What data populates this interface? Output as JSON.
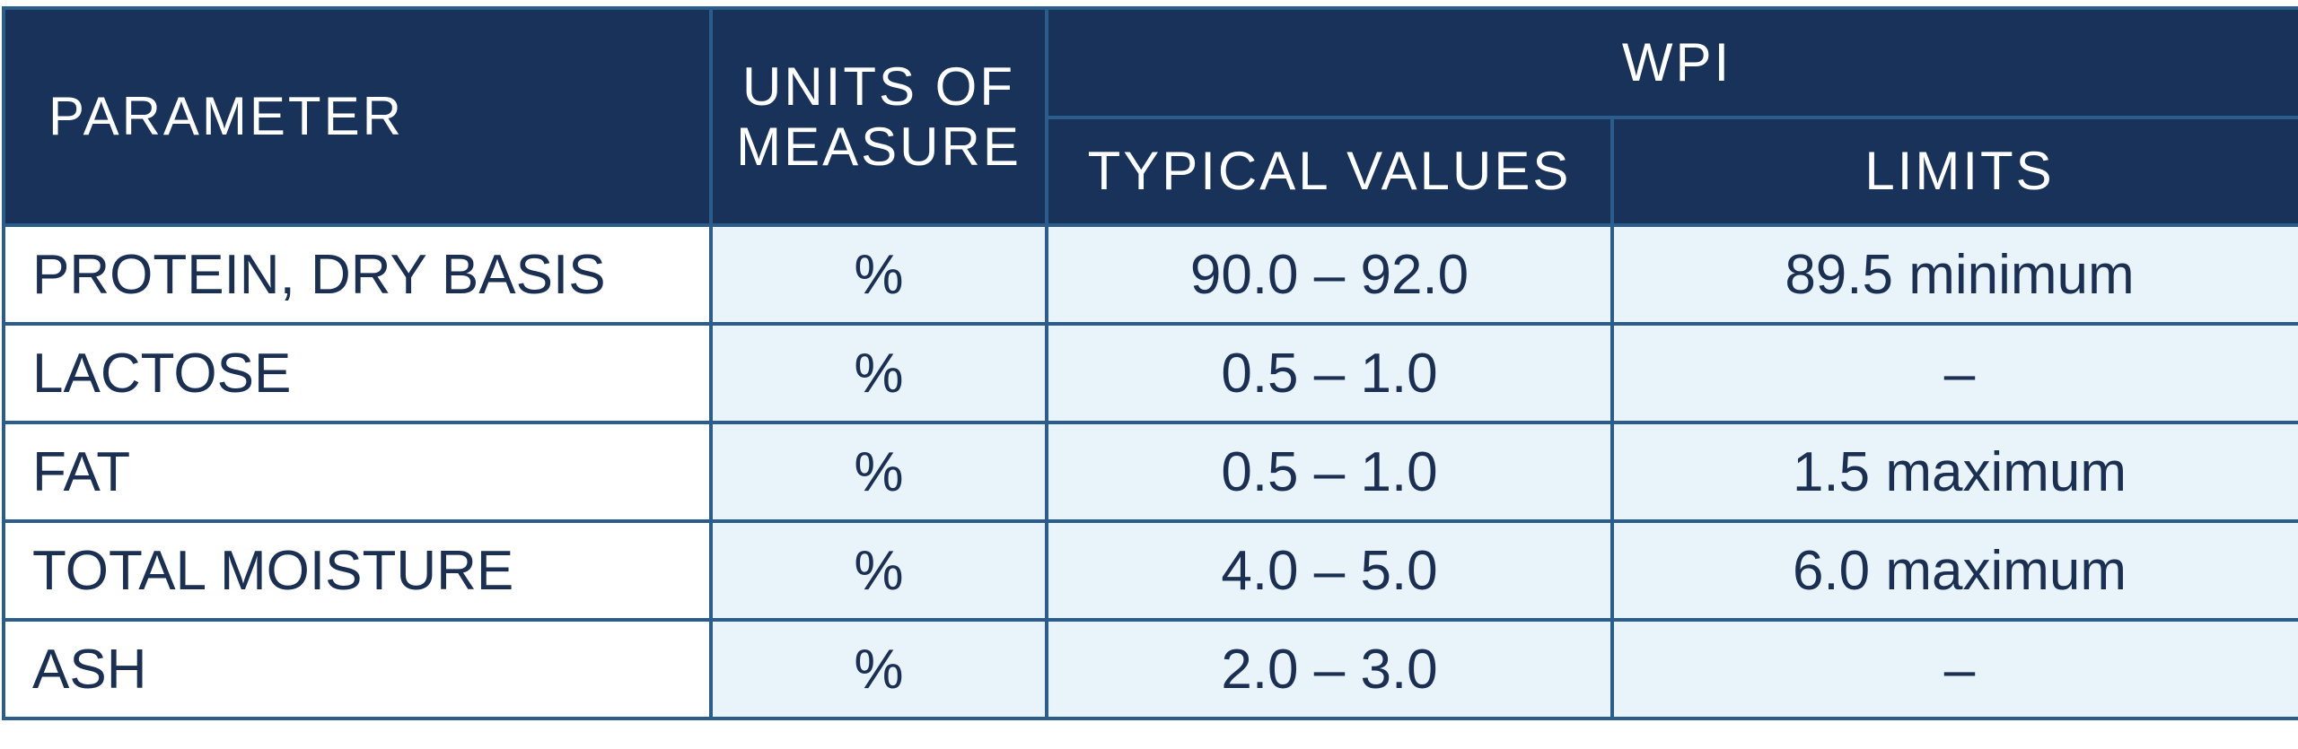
{
  "table": {
    "headers": {
      "parameter": "PARAMETER",
      "units_line1": "UNITS OF",
      "units_line2": "MEASURE",
      "group": "WPI",
      "typical_values": "TYPICAL VALUES",
      "limits": "LIMITS"
    },
    "rows": [
      {
        "parameter": "PROTEIN, DRY BASIS",
        "unit": "%",
        "typical": "90.0 – 92.0",
        "limit": "89.5 minimum"
      },
      {
        "parameter": "LACTOSE",
        "unit": "%",
        "typical": "0.5 – 1.0",
        "limit": "–"
      },
      {
        "parameter": "FAT",
        "unit": "%",
        "typical": "0.5 – 1.0",
        "limit": "1.5 maximum"
      },
      {
        "parameter": "TOTAL MOISTURE",
        "unit": "%",
        "typical": "4.0 – 5.0",
        "limit": "6.0 maximum"
      },
      {
        "parameter": "ASH",
        "unit": "%",
        "typical": "2.0 – 3.0",
        "limit": "–"
      }
    ]
  },
  "colors": {
    "header_bg": "#18325a",
    "header_text": "#ffffff",
    "grid": "#2a5d8c",
    "cell_bg": "#e8f3fa",
    "param_bg": "#ffffff",
    "body_text": "#1a2f52"
  }
}
